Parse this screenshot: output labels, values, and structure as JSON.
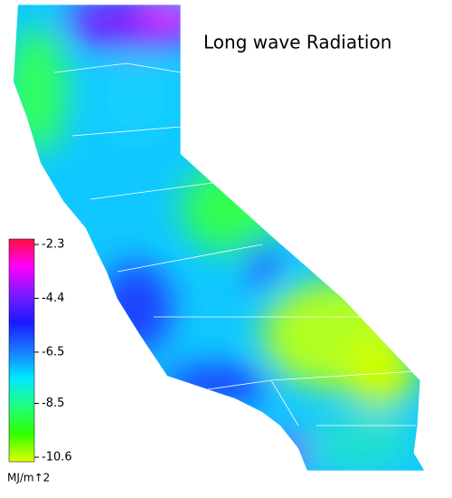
{
  "title": "Long wave Radiation",
  "colorbar": {
    "range": [
      -2.3,
      -10.6
    ],
    "ticks": [
      -2.3,
      -4.4,
      -6.5,
      -8.5,
      -10.6
    ],
    "unit": "MJ/m↑2",
    "colors": [
      "#ff1040",
      "#ff00ff",
      "#7a1aff",
      "#1a1aff",
      "#1a78ff",
      "#00e8ff",
      "#20ff80",
      "#30ff00",
      "#e0ff00"
    ]
  }
}
